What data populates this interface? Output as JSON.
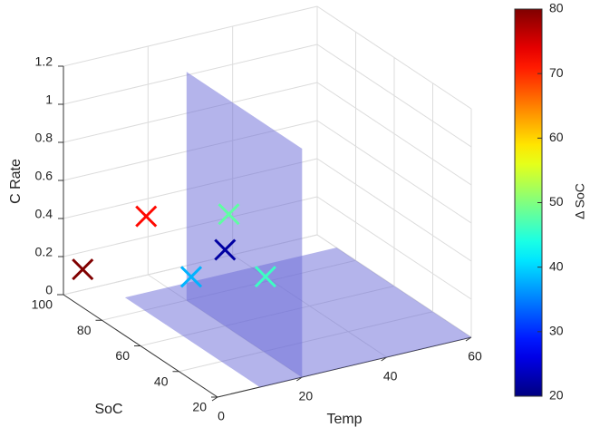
{
  "chart_data": {
    "type": "scatter3d",
    "xlabel": "Temp",
    "ylabel": "SoC",
    "zlabel": "C Rate",
    "x": [
      0,
      15,
      30,
      20,
      12,
      25
    ],
    "y": [
      90,
      90,
      80,
      60,
      60,
      50
    ],
    "z": [
      0.2,
      0.4,
      0.4,
      0.4,
      0.3,
      0.3
    ],
    "c": [
      80,
      72,
      48,
      22,
      38,
      46
    ],
    "xlim": [
      0,
      60
    ],
    "xticks": [
      0,
      20,
      40,
      60
    ],
    "ylim": [
      20,
      100
    ],
    "yticks": [
      20,
      40,
      60,
      80,
      100
    ],
    "zlim": [
      0,
      1.2
    ],
    "zticks": [
      0,
      0.2,
      0.4,
      0.6,
      0.8,
      1,
      1.2
    ],
    "clim": [
      20,
      80
    ],
    "cticks": [
      20,
      30,
      40,
      50,
      60,
      70,
      80
    ],
    "clabel": "Δ SoC",
    "colormap": "jet",
    "grid": true,
    "planes": [
      {
        "x": 20,
        "y": [
          20,
          80
        ],
        "z": [
          0,
          1.2
        ]
      },
      {
        "z": 0,
        "x": [
          10,
          60
        ],
        "y": [
          20,
          90
        ]
      }
    ],
    "plane_color": "#6a6ad8"
  }
}
